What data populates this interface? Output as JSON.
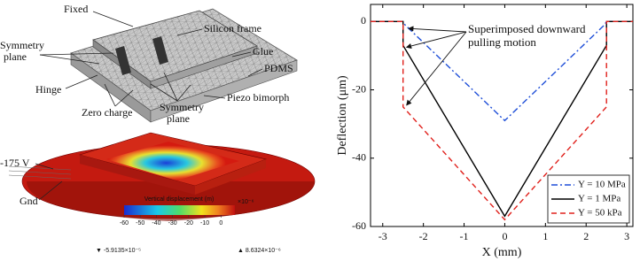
{
  "diagram": {
    "labels": {
      "fixed": "Fixed",
      "silicon_frame": "Silicon frame",
      "glue": "Glue",
      "pdms": "PDMS",
      "piezo": "Piezo bimorph",
      "symmetry_left": [
        "Symmetry",
        "plane"
      ],
      "hinge": "Hinge",
      "zero_charge": "Zero charge",
      "symmetry_right": [
        "Symmetry",
        "plane"
      ],
      "voltage": "-175 V",
      "gnd": "Gnd"
    },
    "colorbar": {
      "title": "Vertical displacement (m)",
      "multiplier": "×10⁻⁶",
      "min_label": "▼ -5.9135×10⁻⁵",
      "max_label": "▲ 8.6324×10⁻⁶",
      "lim": [
        -60,
        8.6324
      ],
      "ticks": [
        -60,
        -50,
        -40,
        -30,
        -20,
        -10,
        0
      ]
    }
  },
  "chart_data": {
    "type": "line",
    "xlabel": "X (mm)",
    "ylabel": "Deflection (μm)",
    "annotation": [
      "Superimposed downward",
      "pulling motion"
    ],
    "xlim": [
      -3.3,
      3.15
    ],
    "xticks": [
      -3,
      -2,
      -1,
      0,
      1,
      2,
      3
    ],
    "ylim": [
      -60,
      5
    ],
    "yticks": [
      -60,
      -40,
      -20,
      0
    ],
    "legend": "lower right",
    "series": [
      {
        "name": "Y = 10 MPa",
        "color": "#1f4fd8",
        "linestyle": "dashdot",
        "x": [
          -3.3,
          -2.5,
          -2.45,
          0,
          2.45,
          2.5,
          3.15
        ],
        "values": [
          0,
          0,
          -1,
          -29,
          -1,
          0,
          0
        ]
      },
      {
        "name": "Y = 1 MPa",
        "color": "#000000",
        "linestyle": "solid",
        "x": [
          -3.3,
          -2.5,
          -2.5,
          0,
          2.5,
          2.5,
          3.15
        ],
        "values": [
          0,
          0,
          -7,
          -57,
          -7,
          0,
          0
        ]
      },
      {
        "name": "Y = 50 kPa",
        "color": "#e0201b",
        "linestyle": "dashed",
        "x": [
          -3.3,
          -2.5,
          -2.5,
          0,
          2.5,
          2.5,
          3.15
        ],
        "values": [
          0,
          0,
          -25,
          -58,
          -25,
          0,
          0
        ]
      }
    ]
  }
}
